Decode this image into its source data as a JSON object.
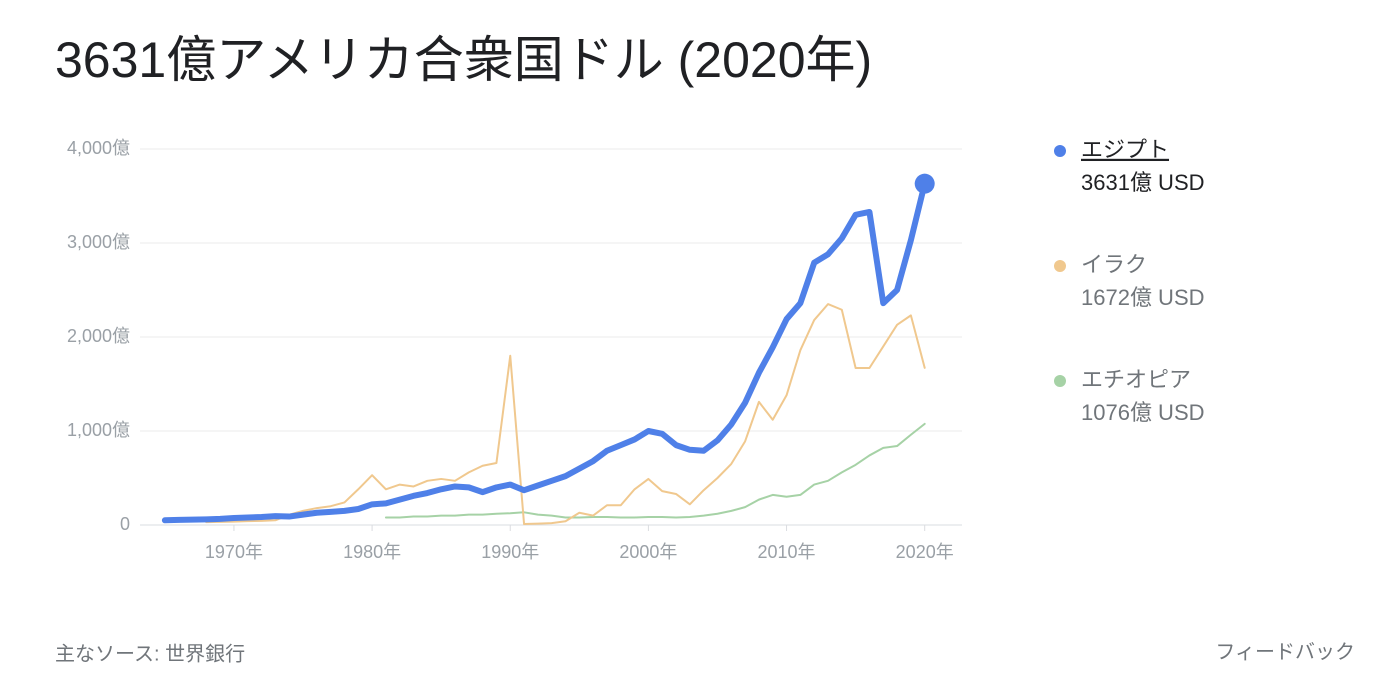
{
  "chart_data": {
    "type": "line",
    "title": "3631億アメリカ合衆国ドル (2020年)",
    "source": "主なソース: 世界銀行",
    "feedback": "フィードバック",
    "x": [
      1965,
      1966,
      1967,
      1968,
      1969,
      1970,
      1971,
      1972,
      1973,
      1974,
      1975,
      1976,
      1977,
      1978,
      1979,
      1980,
      1981,
      1982,
      1983,
      1984,
      1985,
      1986,
      1987,
      1988,
      1989,
      1990,
      1991,
      1992,
      1993,
      1994,
      1995,
      1996,
      1997,
      1998,
      1999,
      2000,
      2001,
      2002,
      2003,
      2004,
      2005,
      2006,
      2007,
      2008,
      2009,
      2010,
      2011,
      2012,
      2013,
      2014,
      2015,
      2016,
      2017,
      2018,
      2019,
      2020
    ],
    "xlim": [
      1963.2,
      2022.7
    ],
    "xticks": [
      {
        "value": 1970,
        "label": "1970年"
      },
      {
        "value": 1980,
        "label": "1980年"
      },
      {
        "value": 1990,
        "label": "1990年"
      },
      {
        "value": 2000,
        "label": "2000年"
      },
      {
        "value": 2010,
        "label": "2010年"
      },
      {
        "value": 2020,
        "label": "2020年"
      }
    ],
    "ylim": [
      0,
      4000
    ],
    "yticks": [
      0,
      {
        "value": 1000,
        "label": "1,000億"
      },
      {
        "value": 2000,
        "label": "2,000億"
      },
      {
        "value": 3000,
        "label": "3,000億"
      },
      {
        "value": 4000,
        "label": "4,000億"
      }
    ],
    "grid": true,
    "series": [
      {
        "name": "エジプト",
        "color": "#4f80e8",
        "legend_value": "3631億 USD",
        "values": [
          50,
          55,
          57,
          60,
          65,
          75,
          80,
          85,
          95,
          90,
          110,
          130,
          140,
          150,
          170,
          220,
          230,
          270,
          310,
          340,
          380,
          410,
          400,
          350,
          400,
          430,
          370,
          420,
          470,
          520,
          600,
          680,
          790,
          850,
          910,
          1000,
          970,
          850,
          800,
          790,
          900,
          1070,
          1300,
          1620,
          1890,
          2190,
          2360,
          2790,
          2880,
          3050,
          3300,
          3330,
          2360,
          2500,
          3030,
          3631
        ]
      },
      {
        "name": "イラク",
        "color": "#f0c88e",
        "legend_value": "1672億 USD",
        "values": [
          null,
          null,
          null,
          30,
          33,
          36,
          41,
          44,
          50,
          110,
          150,
          180,
          200,
          240,
          380,
          530,
          380,
          430,
          410,
          470,
          490,
          470,
          560,
          630,
          660,
          1800,
          10,
          15,
          20,
          40,
          130,
          100,
          210,
          210,
          380,
          490,
          360,
          330,
          220,
          370,
          500,
          650,
          890,
          1310,
          1120,
          1380,
          1860,
          2180,
          2350,
          2290,
          1670,
          1670,
          1900,
          2130,
          2230,
          1672
        ]
      },
      {
        "name": "エチオピア",
        "color": "#a6d2a6",
        "legend_value": "1076億 USD",
        "values": [
          null,
          null,
          null,
          null,
          null,
          null,
          null,
          null,
          null,
          null,
          null,
          null,
          null,
          null,
          null,
          null,
          80,
          80,
          90,
          90,
          100,
          100,
          110,
          110,
          120,
          125,
          135,
          110,
          100,
          80,
          80,
          85,
          85,
          80,
          80,
          85,
          85,
          80,
          85,
          100,
          120,
          150,
          190,
          270,
          320,
          300,
          320,
          430,
          470,
          560,
          640,
          740,
          820,
          840,
          960,
          1076
        ]
      }
    ]
  }
}
